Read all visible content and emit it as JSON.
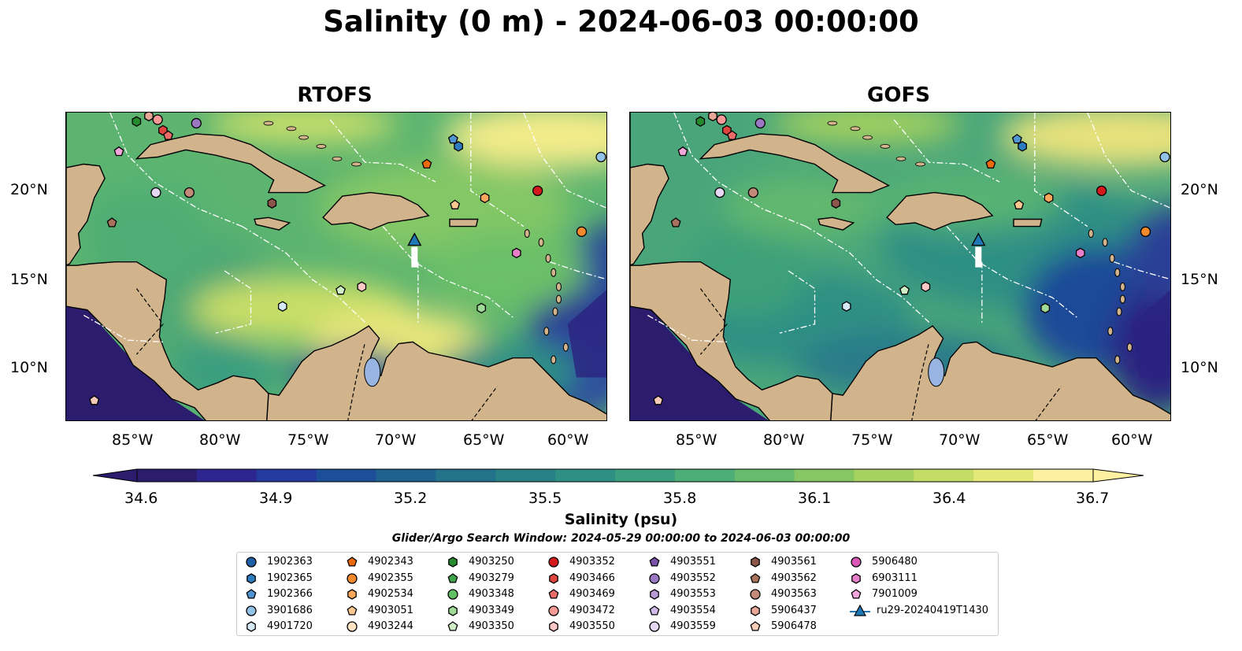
{
  "title": "Salinity (0 m) - 2024-06-03 00:00:00",
  "panels": [
    {
      "title": "RTOFS",
      "variant": "rtofs"
    },
    {
      "title": "GOFS",
      "variant": "gofs"
    }
  ],
  "lat_labels": [
    "20°N",
    "15°N",
    "10°N"
  ],
  "lon_labels": [
    "85°W",
    "80°W",
    "75°W",
    "70°W",
    "65°W",
    "60°W"
  ],
  "colorbar": {
    "ticks": [
      "34.6",
      "34.9",
      "35.2",
      "35.5",
      "35.8",
      "36.1",
      "36.4",
      "36.7"
    ],
    "label": "Salinity (psu)",
    "colors": [
      "#2b1c6e",
      "#2d2690",
      "#233a9e",
      "#1d4f99",
      "#1e6290",
      "#22728a",
      "#278086",
      "#2f8f84",
      "#3a9e7f",
      "#4dad77",
      "#66bb6c",
      "#86c763",
      "#a6d25f",
      "#c5dd66",
      "#e3e878",
      "#fdf0a0"
    ]
  },
  "search_window": "Glider/Argo Search Window: 2024-05-29 00:00:00 to 2024-06-03 00:00:00",
  "legend": [
    {
      "label": "1902363",
      "marker": "circle",
      "color": "#1f5fa8"
    },
    {
      "label": "1902365",
      "marker": "hexagon",
      "color": "#2e7bc0"
    },
    {
      "label": "1902366",
      "marker": "pentagon",
      "color": "#4f95d1"
    },
    {
      "label": "3901686",
      "marker": "circle",
      "color": "#92c3e6"
    },
    {
      "label": "4901720",
      "marker": "hexagon",
      "color": "#d5e8f6"
    },
    {
      "label": "4902343",
      "marker": "pentagon",
      "color": "#ec6a0c"
    },
    {
      "label": "4902355",
      "marker": "circle",
      "color": "#f58a2c"
    },
    {
      "label": "4902534",
      "marker": "hexagon",
      "color": "#f9a75a"
    },
    {
      "label": "4903051",
      "marker": "pentagon",
      "color": "#fcc88f"
    },
    {
      "label": "4903244",
      "marker": "circle",
      "color": "#fde2c4"
    },
    {
      "label": "4903250",
      "marker": "hexagon",
      "color": "#268a2f"
    },
    {
      "label": "4903279",
      "marker": "pentagon",
      "color": "#3ea34a"
    },
    {
      "label": "4903348",
      "marker": "circle",
      "color": "#62c163"
    },
    {
      "label": "4903349",
      "marker": "hexagon",
      "color": "#9ed997"
    },
    {
      "label": "4903350",
      "marker": "pentagon",
      "color": "#cfeec5"
    },
    {
      "label": "4903352",
      "marker": "circle",
      "color": "#d3191c"
    },
    {
      "label": "4903466",
      "marker": "hexagon",
      "color": "#e0443f"
    },
    {
      "label": "4903469",
      "marker": "pentagon",
      "color": "#ec6c68"
    },
    {
      "label": "4903472",
      "marker": "circle",
      "color": "#f59a97"
    },
    {
      "label": "4903550",
      "marker": "hexagon",
      "color": "#fcc8c6"
    },
    {
      "label": "4903551",
      "marker": "pentagon",
      "color": "#7a52a8"
    },
    {
      "label": "4903552",
      "marker": "circle",
      "color": "#9c78c2"
    },
    {
      "label": "4903553",
      "marker": "hexagon",
      "color": "#b799d6"
    },
    {
      "label": "4903554",
      "marker": "pentagon",
      "color": "#cfb9e6"
    },
    {
      "label": "4903559",
      "marker": "circle",
      "color": "#e6d8f3"
    },
    {
      "label": "4903561",
      "marker": "hexagon",
      "color": "#8c564b"
    },
    {
      "label": "4903562",
      "marker": "pentagon",
      "color": "#a9725f"
    },
    {
      "label": "4903563",
      "marker": "circle",
      "color": "#c48a79"
    },
    {
      "label": "5906437",
      "marker": "hexagon",
      "color": "#e6a796"
    },
    {
      "label": "5906478",
      "marker": "pentagon",
      "color": "#f6cbb8"
    },
    {
      "label": "5906480",
      "marker": "circle",
      "color": "#d957b6"
    },
    {
      "label": "6903111",
      "marker": "hexagon",
      "color": "#e67fc7"
    },
    {
      "label": "7901009",
      "marker": "pentagon",
      "color": "#f3a6da"
    },
    {
      "label": "ru29-20240419T1430",
      "marker": "triangle-line",
      "color": "#1f77b4"
    }
  ],
  "floats": [
    {
      "id": "4903559",
      "lon": -83.9,
      "lat": 19.9
    },
    {
      "id": "4903563",
      "lon": -82.0,
      "lat": 19.9
    },
    {
      "id": "4903561",
      "lon": -77.3,
      "lat": 19.3
    },
    {
      "id": "4903562",
      "lon": -86.4,
      "lat": 18.2
    },
    {
      "id": "7901009",
      "lon": -86.0,
      "lat": 22.2
    },
    {
      "id": "4903250",
      "lon": -85.0,
      "lat": 23.9
    },
    {
      "id": "5906437",
      "lon": -84.3,
      "lat": 24.2
    },
    {
      "id": "4903472",
      "lon": -83.8,
      "lat": 24.0
    },
    {
      "id": "4903466",
      "lon": -83.5,
      "lat": 23.4
    },
    {
      "id": "4903469",
      "lon": -83.2,
      "lat": 23.1
    },
    {
      "id": "4903552",
      "lon": -81.6,
      "lat": 23.8
    },
    {
      "id": "1902366",
      "lon": -67.0,
      "lat": 22.9
    },
    {
      "id": "1902365",
      "lon": -66.7,
      "lat": 22.5
    },
    {
      "id": "4902343",
      "lon": -68.5,
      "lat": 21.5
    },
    {
      "id": "3901686",
      "lon": -58.6,
      "lat": 21.9
    },
    {
      "id": "4903352",
      "lon": -62.2,
      "lat": 20.0
    },
    {
      "id": "4902534",
      "lon": -65.2,
      "lat": 19.6
    },
    {
      "id": "4903051",
      "lon": -66.9,
      "lat": 19.2
    },
    {
      "id": "4902355",
      "lon": -59.7,
      "lat": 17.7
    },
    {
      "id": "6903111",
      "lon": -63.4,
      "lat": 16.5
    },
    {
      "id": "4903550",
      "lon": -72.2,
      "lat": 14.6
    },
    {
      "id": "4903350",
      "lon": -73.4,
      "lat": 14.4
    },
    {
      "id": "4901720",
      "lon": -76.7,
      "lat": 13.5
    },
    {
      "id": "4903349",
      "lon": -65.4,
      "lat": 13.4
    },
    {
      "id": "5906478",
      "lon": -87.4,
      "lat": 8.2
    }
  ],
  "glider": {
    "id": "ru29-20240419T1430",
    "lon": -69.2,
    "lat": 17.2
  }
}
